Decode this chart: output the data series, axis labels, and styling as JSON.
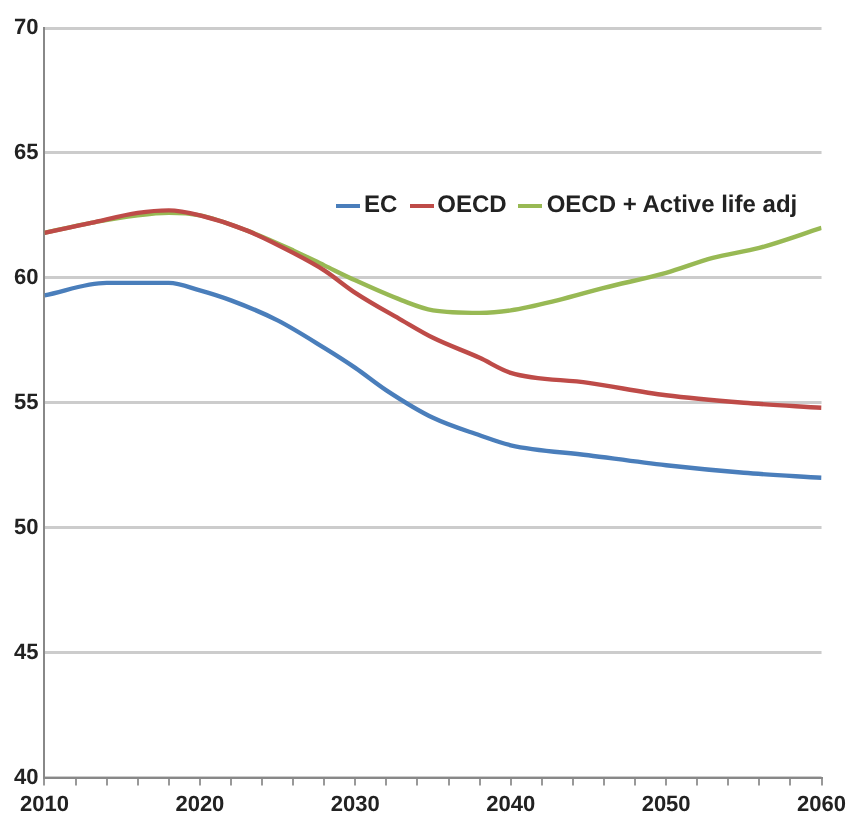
{
  "chart_data": {
    "type": "line",
    "xlim": [
      2010,
      2060
    ],
    "xticks": [
      2010,
      {
        "value": 2012,
        "label": null
      },
      {
        "value": 2014,
        "label": null
      },
      {
        "value": 2016,
        "label": null
      },
      {
        "value": 2018,
        "label": null
      },
      2020,
      {
        "value": 2022,
        "label": null
      },
      {
        "value": 2024,
        "label": null
      },
      {
        "value": 2026,
        "label": null
      },
      {
        "value": 2028,
        "label": null
      },
      2030,
      {
        "value": 2032,
        "label": null
      },
      {
        "value": 2034,
        "label": null
      },
      {
        "value": 2036,
        "label": null
      },
      {
        "value": 2038,
        "label": null
      },
      2040,
      {
        "value": 2042,
        "label": null
      },
      {
        "value": 2044,
        "label": null
      },
      {
        "value": 2046,
        "label": null
      },
      {
        "value": 2048,
        "label": null
      },
      2050,
      {
        "value": 2052,
        "label": null
      },
      {
        "value": 2054,
        "label": null
      },
      {
        "value": 2056,
        "label": null
      },
      {
        "value": 2058,
        "label": null
      },
      2060
    ],
    "ylim": [
      40,
      70
    ],
    "yticks": [
      40,
      45,
      50,
      55,
      60,
      65,
      70
    ],
    "grid": "y",
    "legend": "top",
    "marker": "none",
    "line_style": "solid",
    "series": [
      {
        "name": "EC",
        "color": "#4a7ebb",
        "x": [
          2010,
          2014,
          2018,
          2020,
          2022,
          2025,
          2028,
          2030,
          2032,
          2035,
          2038,
          2040,
          2045,
          2050,
          2055,
          2060
        ],
        "values": [
          59.3,
          59.8,
          59.8,
          59.5,
          59.1,
          58.3,
          57.2,
          56.4,
          55.5,
          54.4,
          53.7,
          53.3,
          52.9,
          52.5,
          52.2,
          52.0
        ]
      },
      {
        "name": "OECD",
        "color": "#be4b48",
        "x": [
          2010,
          2013,
          2016,
          2018,
          2020,
          2023,
          2026,
          2028,
          2030,
          2033,
          2035,
          2038,
          2040,
          2045,
          2050,
          2055,
          2060
        ],
        "values": [
          61.8,
          62.2,
          62.6,
          62.7,
          62.5,
          61.9,
          61.0,
          60.3,
          59.4,
          58.3,
          57.6,
          56.8,
          56.2,
          55.8,
          55.3,
          55.0,
          54.8
        ]
      },
      {
        "name": "OECD + Active life adj",
        "color": "#98b954",
        "x": [
          2010,
          2013,
          2016,
          2018,
          2020,
          2023,
          2026,
          2028,
          2030,
          2033,
          2035,
          2038,
          2040,
          2043,
          2046,
          2050,
          2053,
          2056,
          2060
        ],
        "values": [
          61.8,
          62.2,
          62.5,
          62.6,
          62.5,
          61.9,
          61.1,
          60.5,
          59.9,
          59.1,
          58.7,
          58.6,
          58.7,
          59.1,
          59.6,
          60.2,
          60.8,
          61.2,
          62.0
        ]
      }
    ]
  }
}
